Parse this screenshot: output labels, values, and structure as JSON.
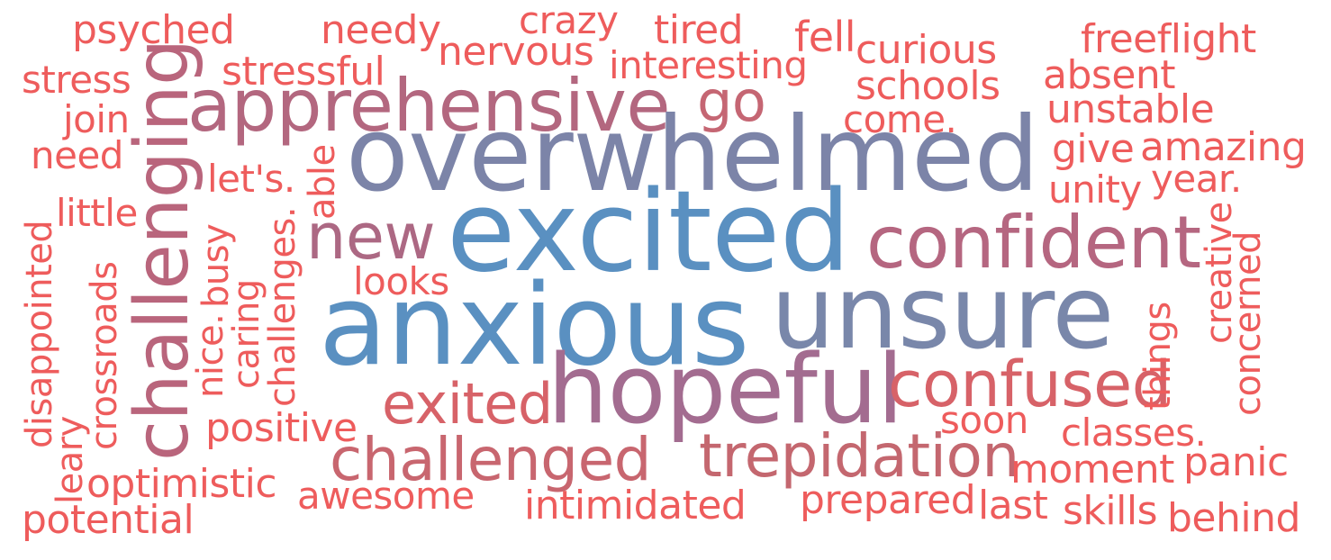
{
  "words": [
    {
      "text": "psyched",
      "color": "#ee5c5c"
    },
    {
      "text": "needy",
      "color": "#ee5c5c"
    },
    {
      "text": "crazy",
      "color": "#ee5c5c"
    },
    {
      "text": "tired",
      "color": "#ee5c5c"
    },
    {
      "text": "fell",
      "color": "#ee5c5c"
    },
    {
      "text": "curious",
      "color": "#ee5c5c"
    },
    {
      "text": "freeflight",
      "color": "#ee5c5c"
    },
    {
      "text": "nervous",
      "color": "#ee5c5c"
    },
    {
      "text": "stressful",
      "color": "#ee5c5c"
    },
    {
      "text": "interesting",
      "color": "#ee5c5c"
    },
    {
      "text": "absent",
      "color": "#ee5c5c"
    },
    {
      "text": "stress",
      "color": "#ee5c5c"
    },
    {
      "text": "schools",
      "color": "#ee5c5c"
    },
    {
      "text": "apprehensive",
      "color": "#b3677f"
    },
    {
      "text": "go",
      "color": "#c56673"
    },
    {
      "text": "unstable",
      "color": "#ee5c5c"
    },
    {
      "text": "join",
      "color": "#ee5c5c"
    },
    {
      "text": "come.",
      "color": "#ee5c5c"
    },
    {
      "text": "overwhelmed",
      "color": "#7c84a8"
    },
    {
      "text": "need",
      "color": "#ee5c5c"
    },
    {
      "text": "give",
      "color": "#ee5c5c"
    },
    {
      "text": "amazing",
      "color": "#ee5c5c"
    },
    {
      "text": "let's.",
      "color": "#ee5c5c"
    },
    {
      "text": "year.",
      "color": "#ee5c5c"
    },
    {
      "text": "unity",
      "color": "#ee5c5c"
    },
    {
      "text": "little",
      "color": "#ee5c5c"
    },
    {
      "text": "new",
      "color": "#ac6883"
    },
    {
      "text": "excited",
      "color": "#5a90c1"
    },
    {
      "text": "confident",
      "color": "#b56680"
    },
    {
      "text": "looks",
      "color": "#ee5c5c"
    },
    {
      "text": "anxious",
      "color": "#5a90c1"
    },
    {
      "text": "unsure",
      "color": "#7987aa"
    },
    {
      "text": "hopeful",
      "color": "#a36c90"
    },
    {
      "text": "confused",
      "color": "#d76268"
    },
    {
      "text": "exited",
      "color": "#d76268"
    },
    {
      "text": "soon",
      "color": "#ee5c5c"
    },
    {
      "text": "positive",
      "color": "#ee5c5c"
    },
    {
      "text": "classes.",
      "color": "#ee5c5c"
    },
    {
      "text": "challenged",
      "color": "#c8666f"
    },
    {
      "text": "trepidation",
      "color": "#c4676f"
    },
    {
      "text": "moment",
      "color": "#ee5c5c"
    },
    {
      "text": "panic",
      "color": "#ee5c5c"
    },
    {
      "text": "optimistic",
      "color": "#ee5c5c"
    },
    {
      "text": "awesome",
      "color": "#ee5c5c"
    },
    {
      "text": "intimidated",
      "color": "#ee5c5c"
    },
    {
      "text": "prepared",
      "color": "#ee5c5c"
    },
    {
      "text": "last",
      "color": "#ee5c5c"
    },
    {
      "text": "skills",
      "color": "#ee5c5c"
    },
    {
      "text": "behind",
      "color": "#ee5c5c"
    },
    {
      "text": "potential",
      "color": "#ee5c5c"
    },
    {
      "text": "challenging",
      "color": "#b9657c"
    },
    {
      "text": "disappointed",
      "color": "#ee5c5c"
    },
    {
      "text": "leary",
      "color": "#ee5c5c"
    },
    {
      "text": "crossroads",
      "color": "#ee5c5c"
    },
    {
      "text": "nice.",
      "color": "#ee5c5c"
    },
    {
      "text": "busy",
      "color": "#ee5c5c"
    },
    {
      "text": "caring",
      "color": "#ee5c5c"
    },
    {
      "text": "challenges.",
      "color": "#ee5c5c"
    },
    {
      "text": "able",
      "color": "#ee5c5c"
    },
    {
      "text": "things",
      "color": "#ee5c5c"
    },
    {
      "text": "creative",
      "color": "#ee5c5c"
    },
    {
      "text": "concerned",
      "color": "#ee5c5c"
    }
  ]
}
